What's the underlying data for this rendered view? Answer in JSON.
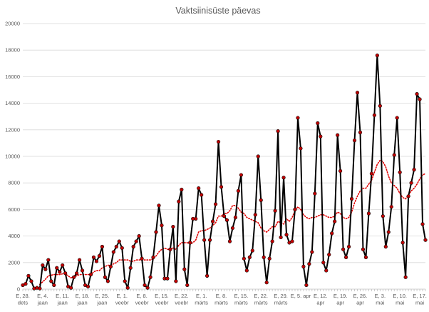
{
  "chart_data": {
    "type": "line",
    "title": "Vaktsiinisüste päevas",
    "xlabel": "",
    "ylabel": "",
    "ylim": [
      0,
      20000
    ],
    "y_ticks": [
      0,
      2000,
      4000,
      6000,
      8000,
      10000,
      12000,
      14000,
      16000,
      18000,
      20000
    ],
    "grid": true,
    "legend": "none",
    "x_tick_labels": [
      {
        "day": 0,
        "lines": [
          "E, 28.",
          "dets"
        ]
      },
      {
        "day": 7,
        "lines": [
          "E, 4.",
          "jaan"
        ]
      },
      {
        "day": 14,
        "lines": [
          "E, 11.",
          "jaan"
        ]
      },
      {
        "day": 21,
        "lines": [
          "E, 18.",
          "jaan"
        ]
      },
      {
        "day": 28,
        "lines": [
          "E, 25.",
          "jaan"
        ]
      },
      {
        "day": 35,
        "lines": [
          "E, 1.",
          "veebr"
        ]
      },
      {
        "day": 42,
        "lines": [
          "E, 8.",
          "veebr"
        ]
      },
      {
        "day": 49,
        "lines": [
          "E, 15.",
          "veebr"
        ]
      },
      {
        "day": 56,
        "lines": [
          "E, 22.",
          "veebr"
        ]
      },
      {
        "day": 63,
        "lines": [
          "E, 1.",
          "märts"
        ]
      },
      {
        "day": 70,
        "lines": [
          "E, 8.",
          "märts"
        ]
      },
      {
        "day": 77,
        "lines": [
          "E, 15.",
          "märts"
        ]
      },
      {
        "day": 84,
        "lines": [
          "E, 22.",
          "märts"
        ]
      },
      {
        "day": 91,
        "lines": [
          "E, 29.",
          "märts"
        ]
      },
      {
        "day": 98,
        "lines": [
          "E, 5. apr"
        ]
      },
      {
        "day": 105,
        "lines": [
          "E, 12.",
          "apr"
        ]
      },
      {
        "day": 112,
        "lines": [
          "E, 19.",
          "apr"
        ]
      },
      {
        "day": 119,
        "lines": [
          "E, 26.",
          "apr"
        ]
      },
      {
        "day": 126,
        "lines": [
          "E, 3.",
          "mai"
        ]
      },
      {
        "day": 133,
        "lines": [
          "E, 10.",
          "mai"
        ]
      },
      {
        "day": 140,
        "lines": [
          "E, 17.",
          "mai"
        ]
      }
    ],
    "series": [
      {
        "role": "daily",
        "color": "#000000",
        "marker_color": "#c00000",
        "values": [
          300,
          400,
          1000,
          600,
          50,
          100,
          50,
          1800,
          1500,
          2200,
          600,
          300,
          1600,
          1300,
          1800,
          1200,
          200,
          100,
          900,
          1200,
          2200,
          1400,
          300,
          200,
          1100,
          2400,
          2100,
          2500,
          3200,
          900,
          600,
          1700,
          2800,
          3200,
          3600,
          3100,
          600,
          100,
          1600,
          3200,
          3600,
          4000,
          2300,
          300,
          100,
          900,
          2400,
          4300,
          6300,
          4800,
          800,
          800,
          3000,
          4700,
          600,
          6600,
          7500,
          1500,
          300,
          3500,
          5300,
          5300,
          7600,
          7100,
          3700,
          1000,
          3700,
          5100,
          6400,
          11100,
          7700,
          5500,
          5200,
          3600,
          4600,
          5400,
          7400,
          8600,
          2300,
          1400,
          2400,
          2900,
          5600,
          10000,
          6700,
          2400,
          500,
          2300,
          3600,
          5900,
          11900,
          3900,
          8400,
          4100,
          3500,
          3600,
          6000,
          12900,
          10600,
          1700,
          300,
          1900,
          2800,
          7200,
          12500,
          11500,
          2000,
          1400,
          2600,
          4200,
          5100,
          11600,
          8900,
          3000,
          2400,
          3200,
          6800,
          11200,
          14800,
          11800,
          3000,
          2400,
          5700,
          8700,
          13100,
          17600,
          13800,
          5500,
          3200,
          4300,
          6200,
          10100,
          12900,
          8800,
          3500,
          900,
          7000,
          8000,
          9000,
          14700,
          14300,
          4900,
          3700
        ]
      },
      {
        "role": "trend",
        "style": "dotted",
        "color": "#e00000",
        "values": [
          null,
          null,
          null,
          null,
          null,
          null,
          350,
          550,
          750,
          1000,
          1050,
          1100,
          1100,
          1100,
          1150,
          1150,
          1000,
          850,
          950,
          1000,
          1100,
          1100,
          1100,
          1100,
          1100,
          1300,
          1400,
          1400,
          1600,
          1700,
          1800,
          1800,
          1900,
          2000,
          2200,
          2200,
          2200,
          2200,
          2100,
          2100,
          2200,
          2200,
          2200,
          2200,
          2200,
          2200,
          2300,
          2500,
          2800,
          3000,
          3100,
          3000,
          3000,
          3100,
          3000,
          3300,
          3500,
          3500,
          3500,
          3400,
          3500,
          3700,
          4300,
          4400,
          4400,
          4500,
          4600,
          4800,
          5000,
          5500,
          5500,
          5700,
          5700,
          5900,
          6300,
          6300,
          6100,
          5800,
          5700,
          5400,
          5300,
          5200,
          5100,
          5000,
          4600,
          4400,
          4300,
          4500,
          4700,
          4700,
          5100,
          5000,
          4900,
          5300,
          5100,
          5400,
          5900,
          6200,
          6000,
          5600,
          5400,
          5300,
          5400,
          5400,
          5500,
          5600,
          5600,
          5500,
          5400,
          5400,
          5500,
          5800,
          5700,
          5400,
          5300,
          5400,
          5800,
          6500,
          7000,
          7400,
          7600,
          7600,
          7900,
          8200,
          8800,
          9400,
          9700,
          9600,
          9200,
          8500,
          8000,
          7800,
          7600,
          7200,
          6900,
          6800,
          7100,
          7400,
          7600,
          7900,
          8300,
          8600,
          8700
        ]
      }
    ]
  }
}
